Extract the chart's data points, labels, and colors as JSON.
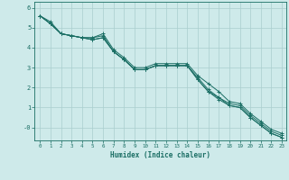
{
  "xlabel": "Humidex (Indice chaleur)",
  "background_color": "#ceeaea",
  "grid_color": "#aacece",
  "line_color": "#1a6e64",
  "xlim": [
    -0.5,
    23.4
  ],
  "ylim": [
    -0.65,
    6.3
  ],
  "x_ticks": [
    0,
    1,
    2,
    3,
    4,
    5,
    6,
    7,
    8,
    9,
    10,
    11,
    12,
    13,
    14,
    15,
    16,
    17,
    18,
    19,
    20,
    21,
    22,
    23
  ],
  "y_ticks": [
    0,
    1,
    2,
    3,
    4,
    5,
    6
  ],
  "y_tick_labels": [
    "-0",
    "1",
    "2",
    "3",
    "4",
    "5",
    "6"
  ],
  "series": [
    [
      5.6,
      5.3,
      4.7,
      4.6,
      4.5,
      4.5,
      4.7,
      3.9,
      3.5,
      3.0,
      3.0,
      3.2,
      3.2,
      3.2,
      3.2,
      2.6,
      2.2,
      1.8,
      1.3,
      1.2,
      0.7,
      0.3,
      -0.1,
      -0.3
    ],
    [
      5.6,
      5.2,
      4.7,
      4.6,
      4.5,
      4.5,
      4.6,
      3.8,
      3.4,
      2.9,
      2.9,
      3.1,
      3.1,
      3.1,
      3.1,
      2.5,
      1.9,
      1.5,
      1.2,
      1.1,
      0.6,
      0.2,
      -0.2,
      -0.4
    ],
    [
      5.6,
      5.2,
      4.7,
      4.6,
      4.5,
      4.4,
      4.5,
      3.8,
      3.4,
      2.9,
      2.9,
      3.1,
      3.1,
      3.1,
      3.1,
      2.4,
      1.8,
      1.5,
      1.1,
      1.0,
      0.5,
      0.1,
      -0.3,
      -0.5
    ],
    [
      5.6,
      5.2,
      4.7,
      4.6,
      4.5,
      4.4,
      4.5,
      3.8,
      3.4,
      2.9,
      2.9,
      3.1,
      3.1,
      3.1,
      3.1,
      2.4,
      1.8,
      1.4,
      1.1,
      1.0,
      0.5,
      0.1,
      -0.3,
      -0.5
    ]
  ]
}
